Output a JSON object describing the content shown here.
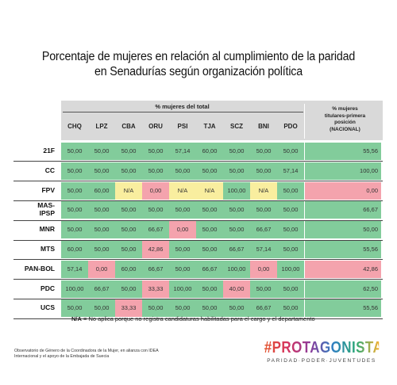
{
  "title_line1": "Porcentaje de mujeres en relación al cumplimiento de la paridad",
  "title_line2": "en Senadurías según organización política",
  "header": {
    "total_label": "% mujeres del total",
    "nac_label_1": "% mujeres",
    "nac_label_2": "titulares-primera",
    "nac_label_3": "posición",
    "nac_label_4": "(NACIONAL)"
  },
  "columns": [
    "CHQ",
    "LPZ",
    "CBA",
    "ORU",
    "PSI",
    "TJA",
    "SCZ",
    "BNI",
    "PDO"
  ],
  "rows": [
    {
      "label": "21F",
      "values": [
        "50,00",
        "50,00",
        "50,00",
        "50,00",
        "57,14",
        "60,00",
        "50,00",
        "50,00",
        "50,00"
      ],
      "status": [
        "g",
        "g",
        "g",
        "g",
        "g",
        "g",
        "g",
        "g",
        "g"
      ],
      "nac": "55,56",
      "nac_status": "g"
    },
    {
      "label": "CC",
      "values": [
        "50,00",
        "50,00",
        "50,00",
        "50,00",
        "50,00",
        "50,00",
        "50,00",
        "50,00",
        "57,14"
      ],
      "status": [
        "g",
        "g",
        "g",
        "g",
        "g",
        "g",
        "g",
        "g",
        "g"
      ],
      "nac": "100,00",
      "nac_status": "g"
    },
    {
      "label": "FPV",
      "values": [
        "50,00",
        "60,00",
        "N/A",
        "0,00",
        "N/A",
        "N/A",
        "100,00",
        "N/A",
        "50,00"
      ],
      "status": [
        "g",
        "g",
        "y",
        "r",
        "y",
        "y",
        "g",
        "y",
        "g"
      ],
      "nac": "0,00",
      "nac_status": "r"
    },
    {
      "label": "MAS-IPSP",
      "values": [
        "50,00",
        "50,00",
        "50,00",
        "50,00",
        "50,00",
        "50,00",
        "50,00",
        "50,00",
        "50,00"
      ],
      "status": [
        "g",
        "g",
        "g",
        "g",
        "g",
        "g",
        "g",
        "g",
        "g"
      ],
      "nac": "66,67",
      "nac_status": "g"
    },
    {
      "label": "MNR",
      "values": [
        "50,00",
        "50,00",
        "50,00",
        "66,67",
        "0,00",
        "50,00",
        "50,00",
        "66,67",
        "50,00"
      ],
      "status": [
        "g",
        "g",
        "g",
        "g",
        "r",
        "g",
        "g",
        "g",
        "g"
      ],
      "nac": "50,00",
      "nac_status": "g"
    },
    {
      "label": "MTS",
      "values": [
        "60,00",
        "50,00",
        "50,00",
        "42,86",
        "50,00",
        "50,00",
        "66,67",
        "57,14",
        "50,00"
      ],
      "status": [
        "g",
        "g",
        "g",
        "r",
        "g",
        "g",
        "g",
        "g",
        "g"
      ],
      "nac": "55,56",
      "nac_status": "g"
    },
    {
      "label": "PAN-BOL",
      "values": [
        "57,14",
        "0,00",
        "60,00",
        "66,67",
        "50,00",
        "66,67",
        "100,00",
        "0,00",
        "100,00"
      ],
      "status": [
        "g",
        "r",
        "g",
        "g",
        "g",
        "g",
        "g",
        "r",
        "g"
      ],
      "nac": "42,86",
      "nac_status": "r"
    },
    {
      "label": "PDC",
      "values": [
        "100,00",
        "66,67",
        "50,00",
        "33,33",
        "100,00",
        "50,00",
        "40,00",
        "50,00",
        "50,00"
      ],
      "status": [
        "g",
        "g",
        "g",
        "r",
        "g",
        "g",
        "r",
        "g",
        "g"
      ],
      "nac": "62,50",
      "nac_status": "g"
    },
    {
      "label": "UCS",
      "values": [
        "50,00",
        "50,00",
        "33,33",
        "50,00",
        "50,00",
        "50,00",
        "50,00",
        "66,67",
        "50,00"
      ],
      "status": [
        "g",
        "g",
        "r",
        "g",
        "g",
        "g",
        "g",
        "g",
        "g"
      ],
      "nac": "55,56",
      "nac_status": "g"
    }
  ],
  "colors": {
    "g": "#82cc9b",
    "r": "#f4a3ad",
    "y": "#f9ee9f"
  },
  "note_bold": "N/A",
  "note_text": " = No aplica porque no registra candidaturas habilitadas para el cargo y el departamento",
  "credit": "Observatorio de Género de la Coordinadora de la Mujer, en alianza con IDEA Internacional y el apoyo de la Embajada de Suecia",
  "brand": "#PROTAGONISTAS",
  "brand_tagline": "PARIDAD·PODER·JUVENTUDES"
}
